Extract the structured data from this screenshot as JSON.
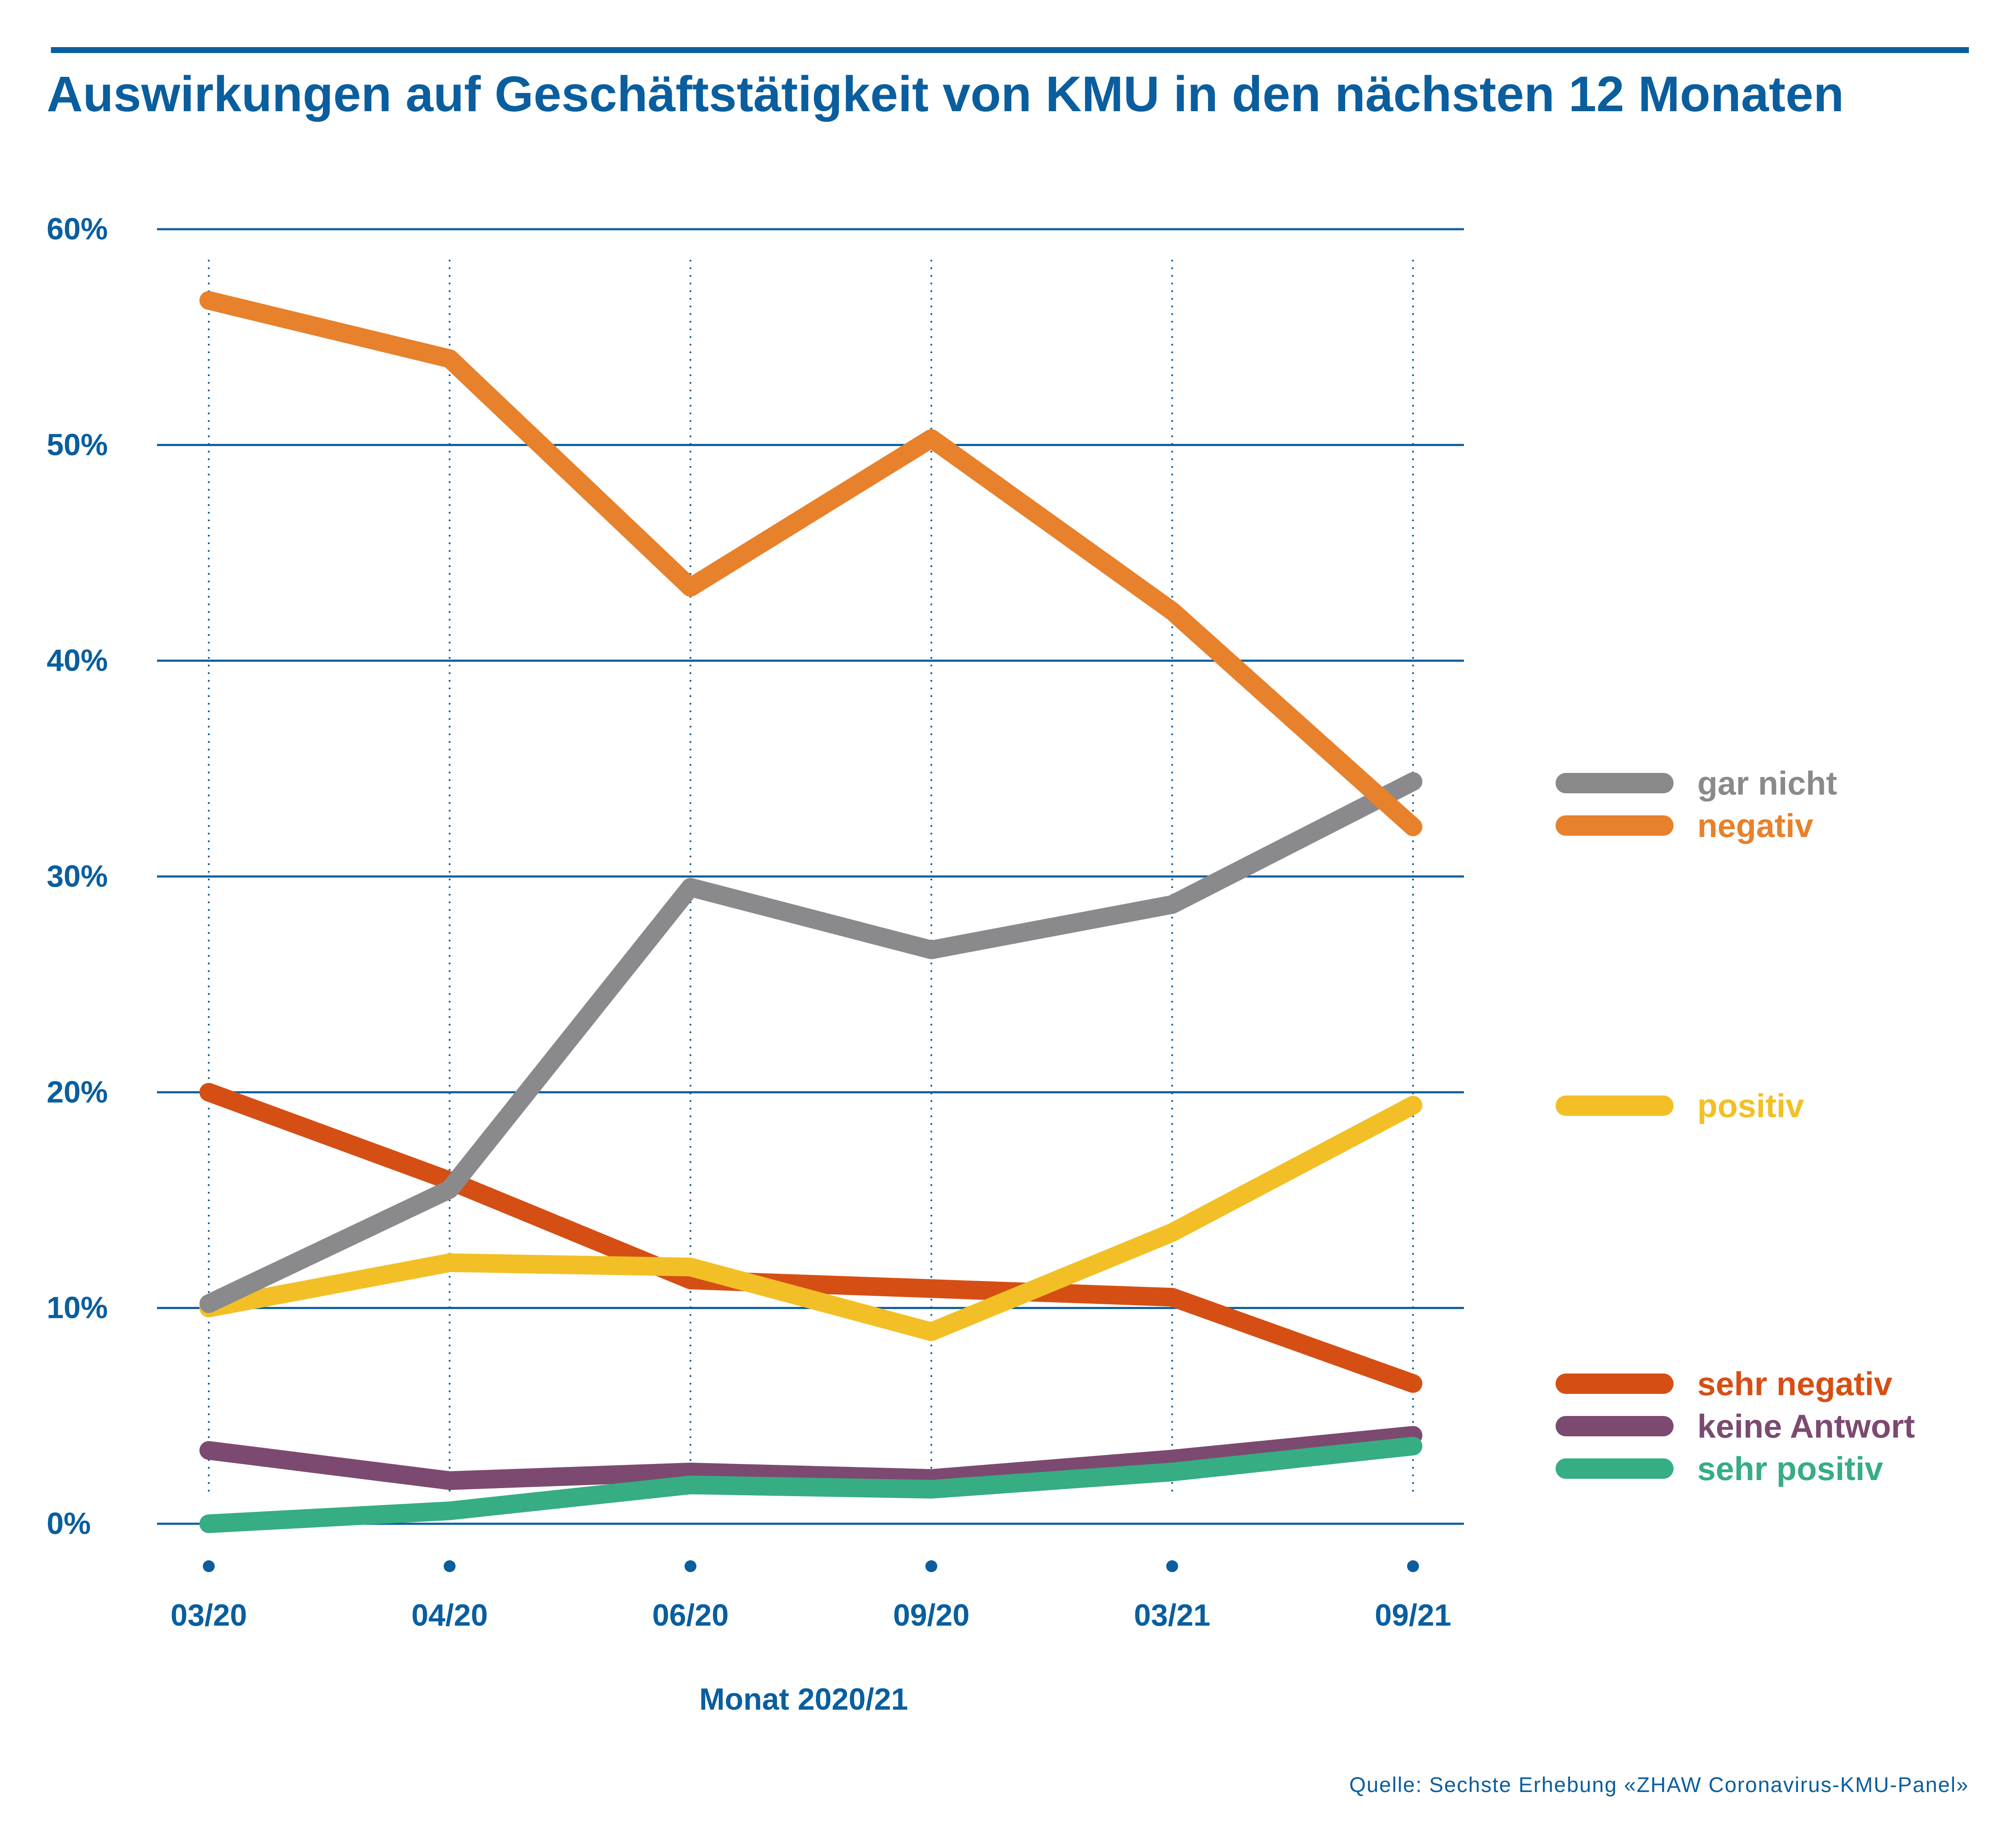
{
  "colors": {
    "accent": "#0a5e9e",
    "gridline": "#0a5e9e"
  },
  "chart_data": {
    "type": "line",
    "title": "Auswirkungen auf Geschäftstätigkeit von KMU in den nächsten 12 Monaten",
    "xlabel": "Monat 2020/21",
    "ylabel": "",
    "categories": [
      "03/20",
      "04/20",
      "06/20",
      "09/20",
      "03/21",
      "09/21"
    ],
    "y_ticks": [
      "0%",
      "10%",
      "20%",
      "30%",
      "40%",
      "50%",
      "60%"
    ],
    "ylim": [
      0,
      60
    ],
    "grid": "horizontal lines every 10%, dotted vertical lines at each month",
    "legend_placement": "right",
    "series": [
      {
        "name": "gar nicht",
        "color": "#8a8a8c",
        "values": [
          10.2,
          15.5,
          29.5,
          26.6,
          28.7,
          34.4
        ]
      },
      {
        "name": "negativ",
        "color": "#e8812b",
        "values": [
          56.7,
          54.0,
          43.4,
          50.3,
          42.3,
          32.3
        ]
      },
      {
        "name": "positiv",
        "color": "#f2c026",
        "values": [
          10.0,
          12.1,
          11.9,
          8.9,
          13.5,
          19.4
        ]
      },
      {
        "name": "sehr negativ",
        "color": "#d54f15",
        "values": [
          20.0,
          15.9,
          11.3,
          10.9,
          10.5,
          6.5
        ]
      },
      {
        "name": "keine Antwort",
        "color": "#7c4a70",
        "values": [
          3.4,
          2.0,
          2.4,
          2.1,
          3.0,
          4.1
        ]
      },
      {
        "name": "sehr positiv",
        "color": "#36ad83",
        "values": [
          0.0,
          0.6,
          1.8,
          1.6,
          2.4,
          3.6
        ]
      }
    ],
    "legend_order": [
      "gar nicht",
      "negativ",
      "positiv",
      "sehr negativ",
      "keine Antwort",
      "sehr positiv"
    ]
  },
  "source": "Quelle: Sechste Erhebung «ZHAW Coronavirus-KMU-Panel»"
}
